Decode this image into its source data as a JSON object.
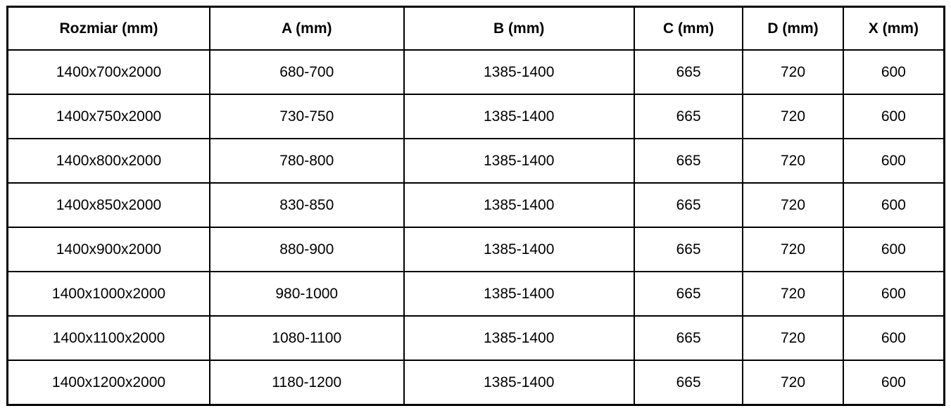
{
  "colors": {
    "border": "#000000",
    "text": "#000000",
    "background": "#ffffff"
  },
  "table": {
    "name": "shower-enclosure-dimensions-table",
    "headers": [
      "Rozmiar (mm)",
      "A (mm)",
      "B (mm)",
      "C (mm)",
      "D (mm)",
      "X (mm)"
    ],
    "rows": [
      [
        "1400x700x2000",
        "680-700",
        "1385-1400",
        "665",
        "720",
        "600"
      ],
      [
        "1400x750x2000",
        "730-750",
        "1385-1400",
        "665",
        "720",
        "600"
      ],
      [
        "1400x800x2000",
        "780-800",
        "1385-1400",
        "665",
        "720",
        "600"
      ],
      [
        "1400x850x2000",
        "830-850",
        "1385-1400",
        "665",
        "720",
        "600"
      ],
      [
        "1400x900x2000",
        "880-900",
        "1385-1400",
        "665",
        "720",
        "600"
      ],
      [
        "1400x1000x2000",
        "980-1000",
        "1385-1400",
        "665",
        "720",
        "600"
      ],
      [
        "1400x1100x2000",
        "1080-1100",
        "1385-1400",
        "665",
        "720",
        "600"
      ],
      [
        "1400x1200x2000",
        "1180-1200",
        "1385-1400",
        "665",
        "720",
        "600"
      ]
    ]
  }
}
